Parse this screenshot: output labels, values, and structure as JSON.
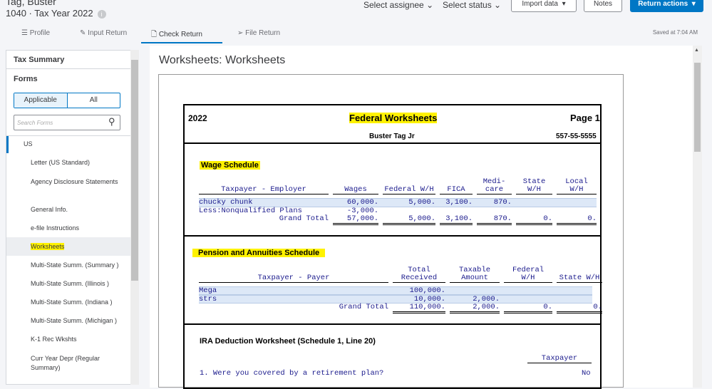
{
  "header": {
    "client": "Tag, Buster",
    "return_info": "1040 · Tax Year 2022",
    "assignee": "Select assignee",
    "status": "Select status",
    "import": "Import data",
    "notes": "Notes",
    "actions": "Return actions",
    "saved": "Saved at 7:04 AM"
  },
  "tabs": [
    {
      "label": "Profile",
      "icon": "list-icon"
    },
    {
      "label": "Input Return",
      "icon": "pencil-icon"
    },
    {
      "label": "Check Return",
      "icon": "document-icon"
    },
    {
      "label": "File Return",
      "icon": "send-icon"
    }
  ],
  "sidebar": {
    "tax_summary": "Tax Summary",
    "forms": "Forms",
    "applicable": "Applicable",
    "all": "All",
    "search_placeholder": "Search Forms",
    "group": "US",
    "items": [
      "Letter (US Standard)",
      "Agency Disclosure Statements",
      "General Info.",
      "e-file Instructions",
      "Worksheets",
      "Multi-State Summ. (Summary )",
      "Multi-State Summ. (Illinois )",
      "Multi-State Summ. (Indiana )",
      "Multi-State Summ. (Michigan )",
      "K-1 Rec Wkshts",
      "Curr Year Depr (Regular Summary)"
    ]
  },
  "main": {
    "title": "Worksheets: Worksheets",
    "doc": {
      "year": "2022",
      "heading": "Federal Worksheets",
      "page": "Page 1",
      "name": "Buster Tag Jr",
      "ssn": "557-55-5555",
      "wage": {
        "title": "Wage Schedule",
        "headers": [
          "Taxpayer - Employer",
          "Wages",
          "Federal W/H",
          "FICA",
          "Medi- care",
          "State W/H",
          "Local W/H"
        ],
        "rows": [
          [
            "chucky chunk",
            "60,000.",
            "5,000.",
            "3,100.",
            "870.",
            "",
            ""
          ],
          [
            "Less:Nonqualified Plans",
            "-3,000.",
            "",
            "",
            "",
            "",
            ""
          ]
        ],
        "total": [
          "Grand Total",
          "57,000.",
          "5,000.",
          "3,100.",
          "870.",
          "0.",
          "0."
        ]
      },
      "pension": {
        "title": "Pension and Annuities Schedule",
        "headers": [
          "Taxpayer - Payer",
          "Total Received",
          "Taxable Amount",
          "Federal W/H",
          "State W/H"
        ],
        "rows": [
          [
            "Mega",
            "100,000.",
            "",
            "",
            ""
          ],
          [
            "strs",
            "10,000.",
            "2,000.",
            "",
            ""
          ]
        ],
        "total": [
          "Grand Total",
          "110,000.",
          "2,000.",
          "0.",
          "0."
        ]
      },
      "ira": {
        "title": "IRA Deduction Worksheet (Schedule 1, Line 20)",
        "col": "Taxpayer",
        "q1": "1. Were you covered by a retirement plan?",
        "a1": "No"
      }
    }
  }
}
